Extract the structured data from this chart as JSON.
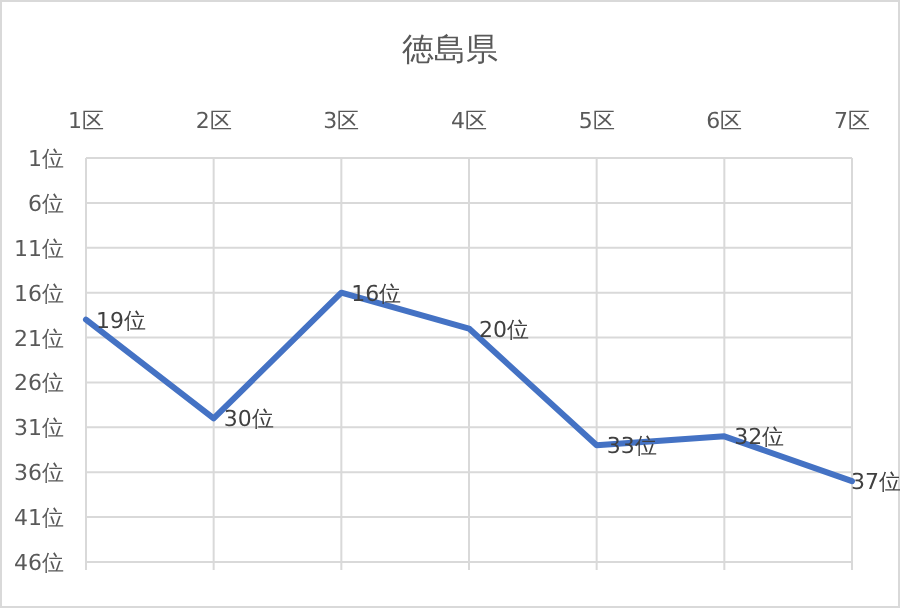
{
  "chart_data": {
    "type": "line",
    "title": "徳島県",
    "categories": [
      "1区",
      "2区",
      "3区",
      "4区",
      "5区",
      "6区",
      "7区"
    ],
    "series": [
      {
        "color": "#4472c4",
        "values": [
          19,
          30,
          16,
          20,
          33,
          32,
          37
        ],
        "value_labels": [
          "19位",
          "30位",
          "16位",
          "20位",
          "33位",
          "32位",
          "37位"
        ]
      }
    ],
    "ylim": [
      46,
      1
    ],
    "yticks": [
      {
        "value": 1,
        "label": "1位"
      },
      {
        "value": 6,
        "label": "6位"
      },
      {
        "value": 11,
        "label": "11位"
      },
      {
        "value": 16,
        "label": "16位"
      },
      {
        "value": 21,
        "label": "21位"
      },
      {
        "value": 26,
        "label": "26位"
      },
      {
        "value": 31,
        "label": "31位"
      },
      {
        "value": 36,
        "label": "36位"
      },
      {
        "value": 41,
        "label": "41位"
      },
      {
        "value": 46,
        "label": "46位"
      }
    ],
    "grid": true,
    "marker": "none",
    "line_style": "solid"
  }
}
